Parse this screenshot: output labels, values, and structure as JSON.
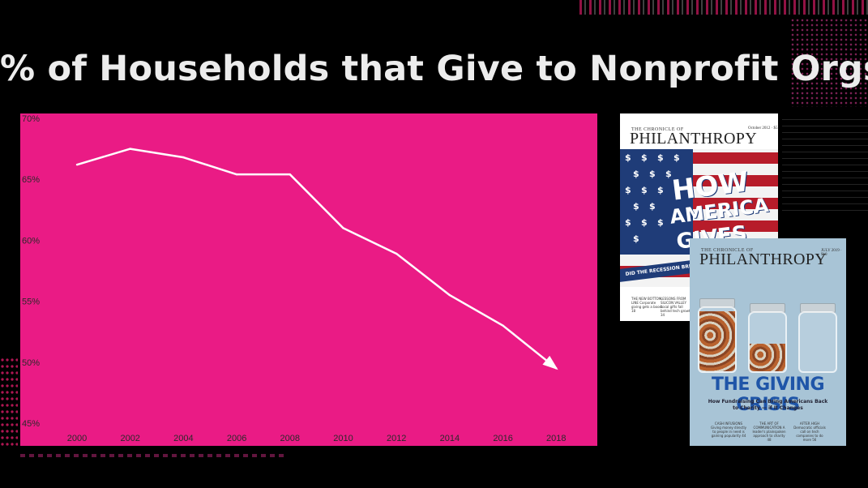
{
  "slide": {
    "title": "% of Households that Give to Nonprofit Orgs"
  },
  "colors": {
    "background": "#000000",
    "chart_background": "#ea1b85",
    "line": "#ffffff",
    "title_text": "#ececec"
  },
  "chart_data": {
    "type": "line",
    "title": "",
    "xlabel": "",
    "ylabel": "",
    "x": [
      2000,
      2002,
      2004,
      2006,
      2008,
      2010,
      2012,
      2014,
      2016,
      2018
    ],
    "series": [
      {
        "values": [
          66.2,
          67.5,
          66.8,
          65.4,
          65.4,
          61.0,
          58.9,
          55.5,
          53.0,
          49.5
        ]
      }
    ],
    "ylim": [
      45,
      70
    ],
    "yticks": [
      "70%",
      "65%",
      "60%",
      "55%",
      "50%",
      "45%"
    ],
    "xticks": [
      "2000",
      "2002",
      "2004",
      "2006",
      "2008",
      "2010",
      "2012",
      "2014",
      "2016",
      "2018"
    ],
    "grid": false,
    "legend": "none",
    "end_marker": "arrow"
  },
  "cover1": {
    "masthead_small": "THE CHRONICLE OF",
    "masthead": "PHILANTHROPY",
    "issue": "October 2012 · $5",
    "headline_lines": [
      "HOW",
      "AMERICA",
      "GIVES"
    ],
    "banner": "DID THE RECESSION BREAK AMERICA'S GENEROUS SPIRIT?",
    "blurbs": [
      "THE NEW BOTTOM LINE Corporate giving gets a boost 18",
      "LESSONS FROM SILICON VALLEY Local gifts fall behind tech growth 34"
    ]
  },
  "cover2": {
    "masthead_small": "THE CHRONICLE OF",
    "masthead": "PHILANTHROPY",
    "issue": "JULY 2019 · $10",
    "headline": "THE GIVING CRISIS",
    "subhead_lines": [
      "How Fundraising Can Bring Americans Back",
      "to Charity — if It Changes"
    ],
    "blurbs": [
      "CASH INFUSIONS Giving money directly to people in need is gaining popularity 44",
      "THE ART OF COMMUNICATION A leader's plainspoken approach to charity 48",
      "AFTER HIGH Democratic officials call on tech companies to do more 56"
    ]
  }
}
